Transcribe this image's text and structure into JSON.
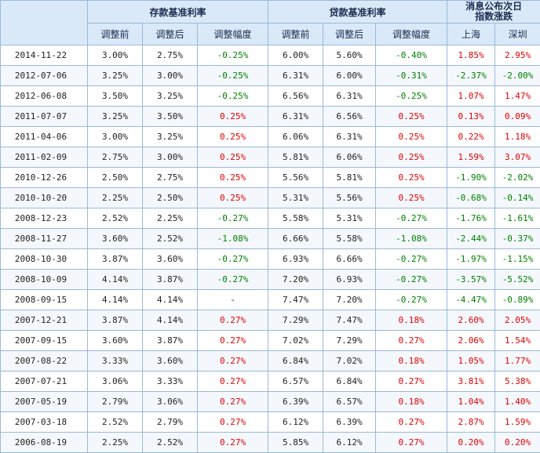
{
  "header": {
    "deposit_group": "存款基准利率",
    "loan_group": "贷款基准利率",
    "index_group_line1": "消息公布次日",
    "index_group_line2": "指数涨跌",
    "columns": {
      "before": "调整前",
      "after": "调整后",
      "change": "调整幅度",
      "shanghai": "上海",
      "shenzhen": "深圳"
    }
  },
  "colors": {
    "up": "#e00000",
    "down": "#008000",
    "header_bg": "#d9e9f8",
    "border": "#9cb8d8"
  },
  "rows": [
    {
      "date": "2014-11-22",
      "dep_before": "3.00%",
      "dep_after": "2.75%",
      "dep_change": "-0.25%",
      "loan_before": "6.00%",
      "loan_after": "5.60%",
      "loan_change": "-0.40%",
      "sh": "1.85%",
      "sz": "2.95%"
    },
    {
      "date": "2012-07-06",
      "dep_before": "3.25%",
      "dep_after": "3.00%",
      "dep_change": "-0.25%",
      "loan_before": "6.31%",
      "loan_after": "6.00%",
      "loan_change": "-0.31%",
      "sh": "-2.37%",
      "sz": "-2.00%"
    },
    {
      "date": "2012-06-08",
      "dep_before": "3.50%",
      "dep_after": "3.25%",
      "dep_change": "-0.25%",
      "loan_before": "6.56%",
      "loan_after": "6.31%",
      "loan_change": "-0.25%",
      "sh": "1.07%",
      "sz": "1.47%"
    },
    {
      "date": "2011-07-07",
      "dep_before": "3.25%",
      "dep_after": "3.50%",
      "dep_change": "0.25%",
      "loan_before": "6.31%",
      "loan_after": "6.56%",
      "loan_change": "0.25%",
      "sh": "0.13%",
      "sz": "0.09%"
    },
    {
      "date": "2011-04-06",
      "dep_before": "3.00%",
      "dep_after": "3.25%",
      "dep_change": "0.25%",
      "loan_before": "6.06%",
      "loan_after": "6.31%",
      "loan_change": "0.25%",
      "sh": "0.22%",
      "sz": "1.18%"
    },
    {
      "date": "2011-02-09",
      "dep_before": "2.75%",
      "dep_after": "3.00%",
      "dep_change": "0.25%",
      "loan_before": "5.81%",
      "loan_after": "6.06%",
      "loan_change": "0.25%",
      "sh": "1.59%",
      "sz": "3.07%"
    },
    {
      "date": "2010-12-26",
      "dep_before": "2.50%",
      "dep_after": "2.75%",
      "dep_change": "0.25%",
      "loan_before": "5.56%",
      "loan_after": "5.81%",
      "loan_change": "0.25%",
      "sh": "-1.90%",
      "sz": "-2.02%"
    },
    {
      "date": "2010-10-20",
      "dep_before": "2.25%",
      "dep_after": "2.50%",
      "dep_change": "0.25%",
      "loan_before": "5.31%",
      "loan_after": "5.56%",
      "loan_change": "0.25%",
      "sh": "-0.68%",
      "sz": "-0.14%"
    },
    {
      "date": "2008-12-23",
      "dep_before": "2.52%",
      "dep_after": "2.25%",
      "dep_change": "-0.27%",
      "loan_before": "5.58%",
      "loan_after": "5.31%",
      "loan_change": "-0.27%",
      "sh": "-1.76%",
      "sz": "-1.61%"
    },
    {
      "date": "2008-11-27",
      "dep_before": "3.60%",
      "dep_after": "2.52%",
      "dep_change": "-1.08%",
      "loan_before": "6.66%",
      "loan_after": "5.58%",
      "loan_change": "-1.08%",
      "sh": "-2.44%",
      "sz": "-0.37%"
    },
    {
      "date": "2008-10-30",
      "dep_before": "3.87%",
      "dep_after": "3.60%",
      "dep_change": "-0.27%",
      "loan_before": "6.93%",
      "loan_after": "6.66%",
      "loan_change": "-0.27%",
      "sh": "-1.97%",
      "sz": "-1.15%"
    },
    {
      "date": "2008-10-09",
      "dep_before": "4.14%",
      "dep_after": "3.87%",
      "dep_change": "-0.27%",
      "loan_before": "7.20%",
      "loan_after": "6.93%",
      "loan_change": "-0.27%",
      "sh": "-3.57%",
      "sz": "-5.52%"
    },
    {
      "date": "2008-09-15",
      "dep_before": "4.14%",
      "dep_after": "4.14%",
      "dep_change": "-",
      "loan_before": "7.47%",
      "loan_after": "7.20%",
      "loan_change": "-0.27%",
      "sh": "-4.47%",
      "sz": "-0.89%"
    },
    {
      "date": "2007-12-21",
      "dep_before": "3.87%",
      "dep_after": "4.14%",
      "dep_change": "0.27%",
      "loan_before": "7.29%",
      "loan_after": "7.47%",
      "loan_change": "0.18%",
      "sh": "2.60%",
      "sz": "2.05%"
    },
    {
      "date": "2007-09-15",
      "dep_before": "3.60%",
      "dep_after": "3.87%",
      "dep_change": "0.27%",
      "loan_before": "7.02%",
      "loan_after": "7.29%",
      "loan_change": "0.27%",
      "sh": "2.06%",
      "sz": "1.54%"
    },
    {
      "date": "2007-08-22",
      "dep_before": "3.33%",
      "dep_after": "3.60%",
      "dep_change": "0.27%",
      "loan_before": "6.84%",
      "loan_after": "7.02%",
      "loan_change": "0.18%",
      "sh": "1.05%",
      "sz": "1.77%"
    },
    {
      "date": "2007-07-21",
      "dep_before": "3.06%",
      "dep_after": "3.33%",
      "dep_change": "0.27%",
      "loan_before": "6.57%",
      "loan_after": "6.84%",
      "loan_change": "0.27%",
      "sh": "3.81%",
      "sz": "5.38%"
    },
    {
      "date": "2007-05-19",
      "dep_before": "2.79%",
      "dep_after": "3.06%",
      "dep_change": "0.27%",
      "loan_before": "6.39%",
      "loan_after": "6.57%",
      "loan_change": "0.18%",
      "sh": "1.04%",
      "sz": "1.40%"
    },
    {
      "date": "2007-03-18",
      "dep_before": "2.52%",
      "dep_after": "2.79%",
      "dep_change": "0.27%",
      "loan_before": "6.12%",
      "loan_after": "6.39%",
      "loan_change": "0.27%",
      "sh": "2.87%",
      "sz": "1.59%"
    },
    {
      "date": "2006-08-19",
      "dep_before": "2.25%",
      "dep_after": "2.52%",
      "dep_change": "0.27%",
      "loan_before": "5.85%",
      "loan_after": "6.12%",
      "loan_change": "0.27%",
      "sh": "0.20%",
      "sz": "0.20%"
    }
  ]
}
